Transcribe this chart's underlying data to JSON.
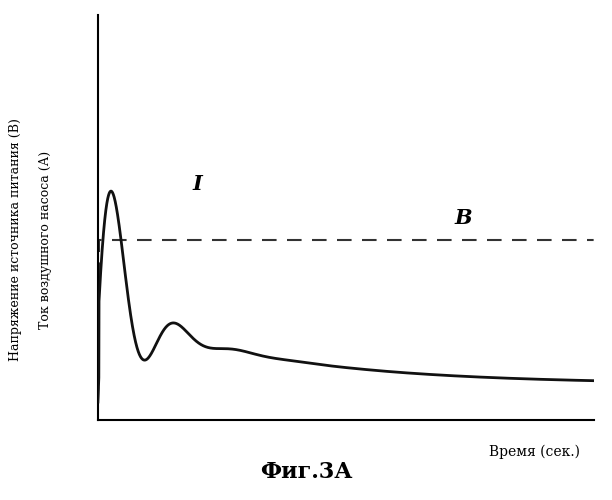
{
  "title": "Фиг.3А",
  "xlabel": "Время (сек.)",
  "ylabel_left_outer": "Напряжение источника питания (В)",
  "ylabel_left_inner": "Ток воздушного насоса (А)",
  "label_I": "I",
  "label_B": "B",
  "background_color": "#ffffff",
  "curve_color": "#111111",
  "dashed_color": "#333333",
  "title_fontsize": 16,
  "axis_label_fontsize": 10,
  "annotation_fontsize": 15,
  "xlim": [
    0,
    10
  ],
  "ylim": [
    -1.5,
    3.0
  ],
  "dashed_y": 0.5
}
